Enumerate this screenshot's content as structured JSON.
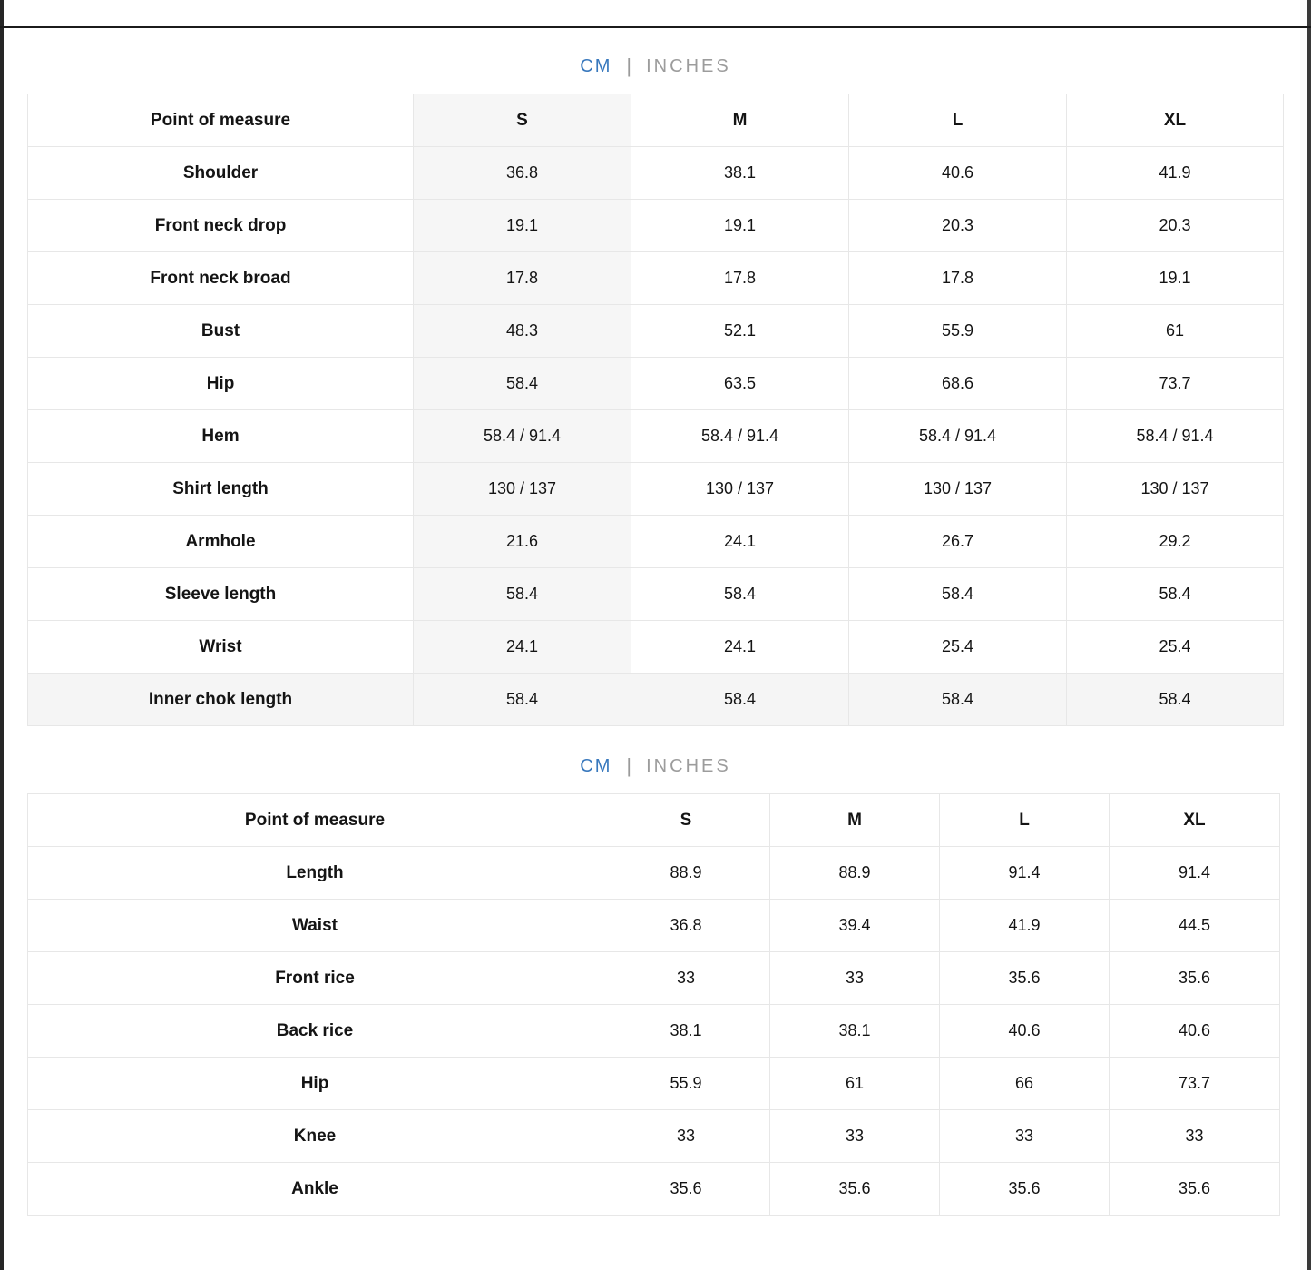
{
  "palette": {
    "accent_blue": "#3878bd",
    "muted_gray": "#9c9c9c",
    "frame_dark": "#262626",
    "shade_gray": "#f6f6f6"
  },
  "unit_toggle": {
    "cm_label": "CM",
    "divider": "|",
    "inches_label": "INCHES",
    "active_unit": "CM"
  },
  "tables": [
    {
      "title": "top-garment-size-chart",
      "columns": [
        "Point of measure",
        "S",
        "M",
        "L",
        "XL"
      ],
      "shaded_size_column": "S",
      "rows": [
        {
          "label": "Shoulder",
          "values": [
            "36.8",
            "38.1",
            "40.6",
            "41.9"
          ]
        },
        {
          "label": "Front neck drop",
          "values": [
            "19.1",
            "19.1",
            "20.3",
            "20.3"
          ]
        },
        {
          "label": "Front neck broad",
          "values": [
            "17.8",
            "17.8",
            "17.8",
            "19.1"
          ]
        },
        {
          "label": "Bust",
          "values": [
            "48.3",
            "52.1",
            "55.9",
            "61"
          ]
        },
        {
          "label": "Hip",
          "values": [
            "58.4",
            "63.5",
            "68.6",
            "73.7"
          ]
        },
        {
          "label": "Hem",
          "values": [
            "58.4 / 91.4",
            "58.4 / 91.4",
            "58.4 / 91.4",
            "58.4 / 91.4"
          ]
        },
        {
          "label": "Shirt length",
          "values": [
            "130 / 137",
            "130 / 137",
            "130 / 137",
            "130 / 137"
          ]
        },
        {
          "label": "Armhole",
          "values": [
            "21.6",
            "24.1",
            "26.7",
            "29.2"
          ]
        },
        {
          "label": "Sleeve length",
          "values": [
            "58.4",
            "58.4",
            "58.4",
            "58.4"
          ]
        },
        {
          "label": "Wrist",
          "values": [
            "24.1",
            "24.1",
            "25.4",
            "25.4"
          ]
        },
        {
          "label": "Inner chok length",
          "values": [
            "58.4",
            "58.4",
            "58.4",
            "58.4"
          ],
          "highlighted": true
        }
      ]
    },
    {
      "title": "bottom-garment-size-chart",
      "columns": [
        "Point of measure",
        "S",
        "M",
        "L",
        "XL"
      ],
      "rows": [
        {
          "label": "Length",
          "values": [
            "88.9",
            "88.9",
            "91.4",
            "91.4"
          ]
        },
        {
          "label": "Waist",
          "values": [
            "36.8",
            "39.4",
            "41.9",
            "44.5"
          ]
        },
        {
          "label": "Front rice",
          "values": [
            "33",
            "33",
            "35.6",
            "35.6"
          ]
        },
        {
          "label": "Back rice",
          "values": [
            "38.1",
            "38.1",
            "40.6",
            "40.6"
          ]
        },
        {
          "label": "Hip",
          "values": [
            "55.9",
            "61",
            "66",
            "73.7"
          ]
        },
        {
          "label": "Knee",
          "values": [
            "33",
            "33",
            "33",
            "33"
          ]
        },
        {
          "label": "Ankle",
          "values": [
            "35.6",
            "35.6",
            "35.6",
            "35.6"
          ]
        }
      ]
    }
  ]
}
